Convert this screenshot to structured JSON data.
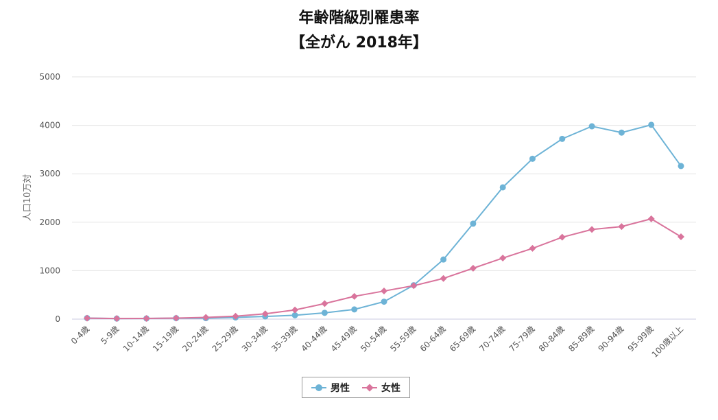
{
  "chart_data": {
    "type": "line",
    "title": "年齢階級別罹患率",
    "subtitle": "【全がん 2018年】",
    "ylabel": "人口10万対",
    "xlabel": "",
    "ylim": [
      0,
      5000
    ],
    "yticks": [
      "0",
      "1000",
      "2000",
      "3000",
      "4000",
      "5000"
    ],
    "grid": true,
    "legend_position": "bottom",
    "categories": [
      "0-4歳",
      "5-9歳",
      "10-14歳",
      "15-19歳",
      "20-24歳",
      "25-29歳",
      "30-34歳",
      "35-39歳",
      "40-44歳",
      "45-49歳",
      "50-54歳",
      "55-59歳",
      "60-64歳",
      "65-69歳",
      "70-74歳",
      "75-79歳",
      "80-84歳",
      "85-89歳",
      "90-94歳",
      "95-99歳",
      "100歳以上"
    ],
    "series": [
      {
        "name": "男性",
        "color": "#6db3d6",
        "marker": "circle",
        "values": [
          22,
          12,
          14,
          20,
          20,
          35,
          55,
          80,
          130,
          200,
          360,
          700,
          1230,
          1970,
          2720,
          3310,
          3720,
          3980,
          3850,
          4010,
          3160
        ]
      },
      {
        "name": "女性",
        "color": "#d9749c",
        "marker": "diamond",
        "values": [
          20,
          12,
          14,
          22,
          35,
          60,
          110,
          190,
          320,
          470,
          580,
          690,
          840,
          1050,
          1260,
          1460,
          1690,
          1850,
          1910,
          2070,
          1700
        ]
      }
    ]
  }
}
